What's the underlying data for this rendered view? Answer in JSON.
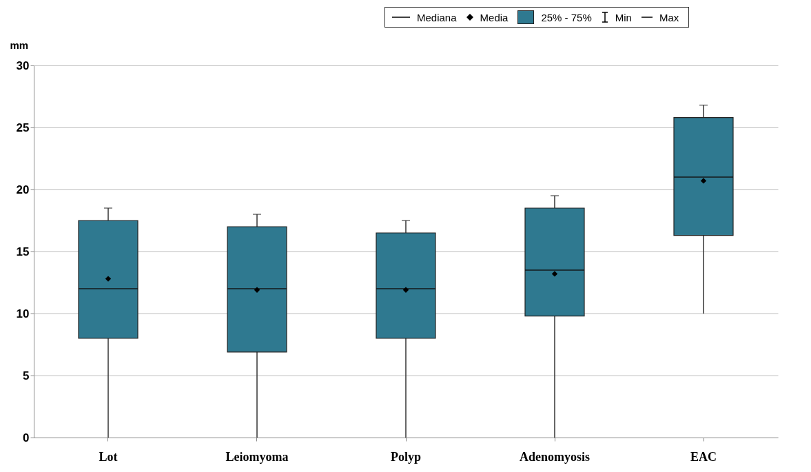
{
  "chart_data": {
    "type": "box",
    "ylabel": "mm",
    "categories": [
      "Lot",
      "Leiomyoma",
      "Polyp",
      "Adenomyosis",
      "EAC"
    ],
    "series": [
      {
        "color": "#2f7990",
        "boxes": [
          {
            "low": 0,
            "q1": 8,
            "median": 12,
            "q3": 17.5,
            "high": 18.5,
            "mean": 12.8
          },
          {
            "low": 0,
            "q1": 6.9,
            "median": 12,
            "q3": 17,
            "high": 18,
            "mean": 11.9
          },
          {
            "low": 0,
            "q1": 8,
            "median": 12,
            "q3": 16.5,
            "high": 17.5,
            "mean": 11.9
          },
          {
            "low": 0,
            "q1": 9.8,
            "median": 13.5,
            "q3": 18.5,
            "high": 19.5,
            "mean": 13.2
          },
          {
            "low": 10,
            "q1": 16.3,
            "median": 21,
            "q3": 25.8,
            "high": 26.8,
            "mean": 20.7
          }
        ]
      }
    ],
    "ylim": [
      0,
      30
    ],
    "yticks": [
      0,
      5,
      10,
      15,
      20,
      25,
      30
    ],
    "grid": "y",
    "marker": "diamond",
    "annotations": [
      "Mediana",
      "Media",
      "25% - 75%",
      "Min",
      "Max"
    ]
  }
}
